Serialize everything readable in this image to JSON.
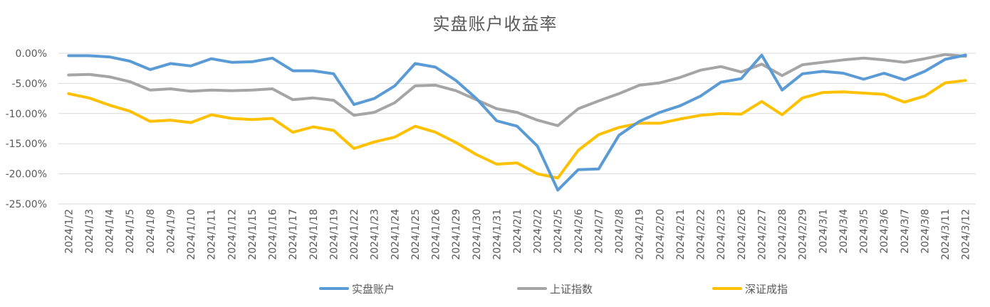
{
  "chart_data": {
    "type": "line",
    "title": "实盘账户收益率",
    "xlabel": "",
    "ylabel": "",
    "ylim": [
      -0.25,
      0
    ],
    "y_ticks": [
      "0.00%",
      "-5.00%",
      "-10.00%",
      "-15.00%",
      "-20.00%",
      "-25.00%"
    ],
    "grid": "horizontal",
    "legend_position": "bottom",
    "categories": [
      "2024/1/2",
      "2024/1/3",
      "2024/1/4",
      "2024/1/5",
      "2024/1/8",
      "2024/1/9",
      "2024/1/10",
      "2024/1/11",
      "2024/1/12",
      "2024/1/15",
      "2024/1/16",
      "2024/1/17",
      "2024/1/18",
      "2024/1/19",
      "2024/1/22",
      "2024/1/23",
      "2024/1/24",
      "2024/1/25",
      "2024/1/26",
      "2024/1/29",
      "2024/1/30",
      "2024/1/31",
      "2024/2/1",
      "2024/2/2",
      "2024/2/5",
      "2024/2/6",
      "2024/2/7",
      "2024/2/8",
      "2024/2/19",
      "2024/2/20",
      "2024/2/21",
      "2024/2/22",
      "2024/2/23",
      "2024/2/26",
      "2024/2/27",
      "2024/2/28",
      "2024/2/29",
      "2024/3/1",
      "2024/3/4",
      "2024/3/5",
      "2024/3/6",
      "2024/3/7",
      "2024/3/8",
      "2024/3/11",
      "2024/3/12"
    ],
    "series": [
      {
        "name": "实盘账户",
        "color": "#5B9BD5",
        "values": [
          -0.004,
          -0.004,
          -0.006,
          -0.013,
          -0.027,
          -0.017,
          -0.021,
          -0.009,
          -0.015,
          -0.014,
          -0.008,
          -0.029,
          -0.029,
          -0.034,
          -0.085,
          -0.075,
          -0.054,
          -0.017,
          -0.023,
          -0.045,
          -0.075,
          -0.112,
          -0.121,
          -0.154,
          -0.227,
          -0.193,
          -0.192,
          -0.136,
          -0.113,
          -0.098,
          -0.087,
          -0.071,
          -0.048,
          -0.042,
          -0.003,
          -0.061,
          -0.034,
          -0.03,
          -0.033,
          -0.043,
          -0.033,
          -0.044,
          -0.03,
          -0.01,
          -0.003
        ]
      },
      {
        "name": "上证指数",
        "color": "#A5A5A5",
        "values": [
          -0.036,
          -0.035,
          -0.039,
          -0.047,
          -0.061,
          -0.059,
          -0.063,
          -0.061,
          -0.062,
          -0.061,
          -0.059,
          -0.077,
          -0.074,
          -0.078,
          -0.103,
          -0.098,
          -0.082,
          -0.054,
          -0.053,
          -0.062,
          -0.077,
          -0.092,
          -0.098,
          -0.111,
          -0.12,
          -0.092,
          -0.079,
          -0.067,
          -0.053,
          -0.049,
          -0.04,
          -0.028,
          -0.022,
          -0.031,
          -0.018,
          -0.037,
          -0.019,
          -0.015,
          -0.011,
          -0.008,
          -0.011,
          -0.015,
          -0.009,
          -0.002,
          -0.005
        ]
      },
      {
        "name": "深证成指",
        "color": "#FFC000",
        "values": [
          -0.067,
          -0.074,
          -0.086,
          -0.096,
          -0.113,
          -0.111,
          -0.115,
          -0.102,
          -0.108,
          -0.11,
          -0.108,
          -0.131,
          -0.122,
          -0.128,
          -0.158,
          -0.147,
          -0.139,
          -0.121,
          -0.131,
          -0.148,
          -0.168,
          -0.184,
          -0.182,
          -0.2,
          -0.207,
          -0.161,
          -0.135,
          -0.123,
          -0.116,
          -0.116,
          -0.109,
          -0.103,
          -0.1,
          -0.101,
          -0.08,
          -0.102,
          -0.074,
          -0.065,
          -0.064,
          -0.066,
          -0.068,
          -0.081,
          -0.071,
          -0.049,
          -0.045
        ]
      }
    ]
  }
}
